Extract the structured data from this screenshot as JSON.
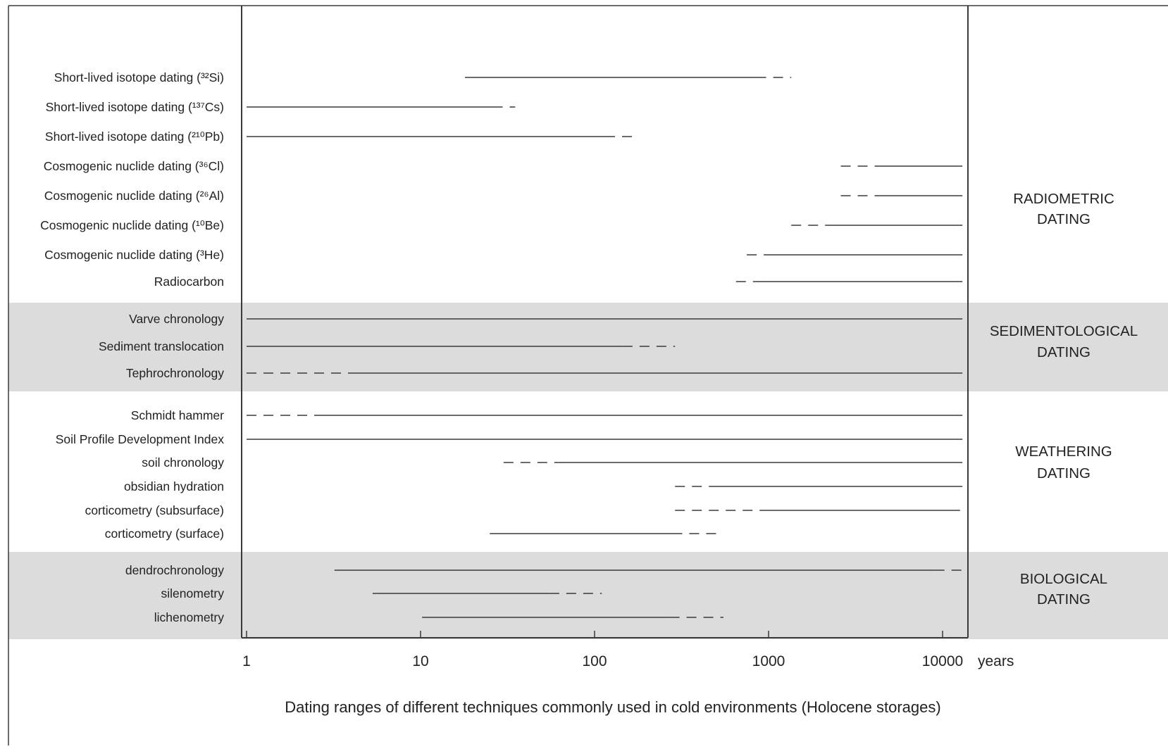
{
  "chart_data": {
    "type": "range",
    "x_scale": "log",
    "x_ticks": [
      "1",
      "10",
      "100",
      "1000",
      "10000"
    ],
    "x_tick_values": [
      1,
      10,
      100,
      1000,
      10000
    ],
    "x_unit": "years",
    "caption": "Dating ranges of different techniques commonly used in cold environments (Holocene storages)",
    "colors": {
      "band": "#dcdcdc",
      "line": "#3a3a3a",
      "text": "#222222"
    },
    "groups": [
      {
        "label_lines": [
          "RADIOMETRIC",
          "DATING"
        ],
        "shaded": false,
        "rows": [
          {
            "label": "Short-lived isotope dating (³²Si)",
            "solid": [
              18,
              850
            ],
            "dashed": [
              850,
              1350
            ]
          },
          {
            "label": "Short-lived isotope dating (¹³⁷Cs)",
            "solid": [
              1,
              26
            ],
            "dashed": [
              26,
              35
            ]
          },
          {
            "label": "Short-lived isotope dating (²¹⁰Pb)",
            "solid": [
              1,
              115
            ],
            "dashed": [
              115,
              180
            ]
          },
          {
            "label": "Cosmogenic nuclide dating (³⁶Cl)",
            "dashed": [
              2600,
              4300
            ],
            "solid": [
              4300,
              13000
            ]
          },
          {
            "label": "Cosmogenic nuclide dating (²⁶Al)",
            "dashed": [
              2600,
              4300
            ],
            "solid": [
              4300,
              13000
            ]
          },
          {
            "label": "Cosmogenic nuclide dating (¹⁰Be)",
            "dashed": [
              1350,
              2300
            ],
            "solid": [
              2300,
              13000
            ]
          },
          {
            "label": "Cosmogenic nuclide dating (³He)",
            "dashed": [
              750,
              950
            ],
            "solid": [
              950,
              13000
            ]
          },
          {
            "label": "Radiocarbon",
            "dashed": [
              650,
              850
            ],
            "solid": [
              850,
              13000
            ]
          }
        ]
      },
      {
        "label_lines": [
          "SEDIMENTOLOGICAL",
          "DATING"
        ],
        "shaded": true,
        "rows": [
          {
            "label": "Varve chronology",
            "solid": [
              1,
              13000
            ]
          },
          {
            "label": "Sediment translocation",
            "solid": [
              1,
              145
            ],
            "dashed": [
              145,
              290
            ]
          },
          {
            "label": "Tephrochronology",
            "dashed": [
              1,
              4.3
            ],
            "solid": [
              4.3,
              13000
            ]
          }
        ]
      },
      {
        "label_lines": [
          "WEATHERING",
          "DATING"
        ],
        "shaded": false,
        "rows": [
          {
            "label": "Schmidt hammer",
            "dashed": [
              1,
              2.7
            ],
            "solid": [
              2.7,
              13000
            ]
          },
          {
            "label": "Soil Profile Development Index",
            "solid": [
              1,
              13000
            ]
          },
          {
            "label": "soil chronology",
            "dashed": [
              30,
              62
            ],
            "solid": [
              62,
              13000
            ]
          },
          {
            "label": "obsidian hydration",
            "dashed": [
              290,
              470
            ],
            "solid": [
              470,
              13000
            ]
          },
          {
            "label": "corticometry (subsurface)",
            "dashed": [
              290,
              1000
            ],
            "solid": [
              1000,
              12600
            ]
          },
          {
            "label": "corticometry (surface)",
            "solid": [
              25,
              280
            ],
            "dashed": [
              280,
              540
            ]
          }
        ]
      },
      {
        "label_lines": [
          "BIOLOGICAL",
          "DATING"
        ],
        "shaded": true,
        "rows": [
          {
            "label": "dendrochronology",
            "solid": [
              3.2,
              9000
            ],
            "dashed": [
              9000,
              13000
            ]
          },
          {
            "label": "silenometry",
            "solid": [
              5.3,
              55
            ],
            "dashed": [
              55,
              110
            ]
          },
          {
            "label": "lichenometry",
            "solid": [
              10.2,
              270
            ],
            "dashed": [
              270,
              550
            ]
          }
        ]
      }
    ]
  }
}
